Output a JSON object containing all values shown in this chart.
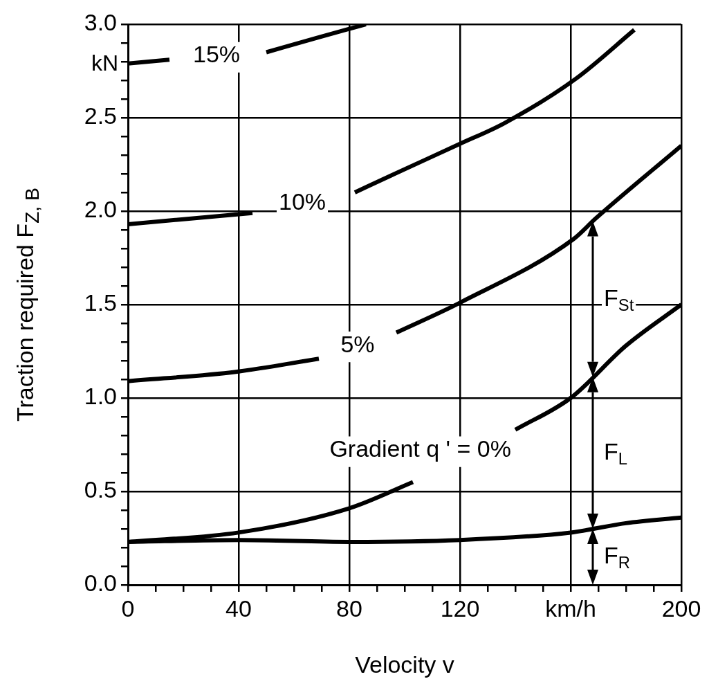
{
  "chart_data": {
    "type": "line",
    "xlabel": "Velocity v",
    "ylabel": "Traction required F$_{Z, B}$",
    "xlim": [
      0,
      200
    ],
    "ylim": [
      0,
      3
    ],
    "xticks": [
      0,
      {
        "value": 10,
        "label": null
      },
      {
        "value": 20,
        "label": null
      },
      {
        "value": 30,
        "label": null
      },
      40,
      {
        "value": 50,
        "label": null
      },
      {
        "value": 60,
        "label": null
      },
      {
        "value": 70,
        "label": null
      },
      80,
      {
        "value": 90,
        "label": null
      },
      {
        "value": 100,
        "label": null
      },
      {
        "value": 110,
        "label": null
      },
      120,
      {
        "value": 130,
        "label": null
      },
      {
        "value": 140,
        "label": null
      },
      {
        "value": 150,
        "label": null
      },
      {
        "value": 160,
        "label": "km/h"
      },
      {
        "value": 170,
        "label": null
      },
      {
        "value": 180,
        "label": null
      },
      {
        "value": 190,
        "label": null
      },
      200
    ],
    "yticks": [
      {
        "value": 0,
        "label": "0.0"
      },
      {
        "value": 0.1,
        "label": null
      },
      {
        "value": 0.2,
        "label": null
      },
      {
        "value": 0.3,
        "label": null
      },
      {
        "value": 0.4,
        "label": null
      },
      {
        "value": 0.5,
        "label": "0.5"
      },
      {
        "value": 0.6,
        "label": null
      },
      {
        "value": 0.7,
        "label": null
      },
      {
        "value": 0.8,
        "label": null
      },
      {
        "value": 0.9,
        "label": null
      },
      {
        "value": 1,
        "label": "1.0"
      },
      {
        "value": 1.1,
        "label": null
      },
      {
        "value": 1.2,
        "label": null
      },
      {
        "value": 1.3,
        "label": null
      },
      {
        "value": 1.4,
        "label": null
      },
      {
        "value": 1.5,
        "label": "1.5"
      },
      {
        "value": 1.6,
        "label": null
      },
      {
        "value": 1.7,
        "label": null
      },
      {
        "value": 1.8,
        "label": null
      },
      {
        "value": 1.9,
        "label": null
      },
      {
        "value": 2,
        "label": "2.0"
      },
      {
        "value": 2.1,
        "label": null
      },
      {
        "value": 2.2,
        "label": null
      },
      {
        "value": 2.3,
        "label": null
      },
      {
        "value": 2.4,
        "label": null
      },
      {
        "value": 2.5,
        "label": "2.5"
      },
      {
        "value": 2.6,
        "label": null
      },
      {
        "value": 2.7,
        "label": null
      },
      {
        "value": 2.8,
        "label": null
      },
      {
        "value": 2.9,
        "label": null
      },
      {
        "value": 3,
        "label": "3.0"
      }
    ],
    "grid": true,
    "marker": "none",
    "line_style": "solid",
    "series": [
      {
        "color": "#000000",
        "x": [
          0,
          40,
          80,
          120,
          160,
          180,
          200
        ],
        "values": [
          0.23,
          0.24,
          0.23,
          0.24,
          0.28,
          0.33,
          0.36
        ]
      },
      {
        "name": "Gradient q ' = 0%",
        "color": "#000000",
        "x": [
          0,
          40,
          80,
          103,
          121,
          140,
          160,
          180,
          200
        ],
        "values": [
          0.23,
          0.28,
          0.41,
          0.55,
          null,
          0.83,
          1.0,
          1.28,
          1.5
        ]
      },
      {
        "name": "5%",
        "color": "#000000",
        "x": [
          0,
          39,
          69,
          83,
          97,
          120,
          161,
          169,
          200
        ],
        "values": [
          1.09,
          1.14,
          1.21,
          null,
          1.35,
          1.51,
          1.85,
          1.96,
          2.35
        ]
      },
      {
        "name": "10%",
        "color": "#000000",
        "x": [
          0,
          45,
          63,
          82,
          95,
          120,
          136,
          162,
          183
        ],
        "values": [
          1.93,
          1.99,
          null,
          2.1,
          2.19,
          2.36,
          2.47,
          2.71,
          2.97
        ]
      },
      {
        "name": "15%",
        "color": "#000000",
        "x": [
          0,
          15,
          32,
          50,
          69,
          86
        ],
        "values": [
          2.79,
          2.81,
          null,
          2.85,
          2.93,
          3.0
        ]
      }
    ],
    "annotations": [
      "kN",
      "F$_{St}$",
      "F$_{L}$",
      "F$_{R}$"
    ]
  }
}
